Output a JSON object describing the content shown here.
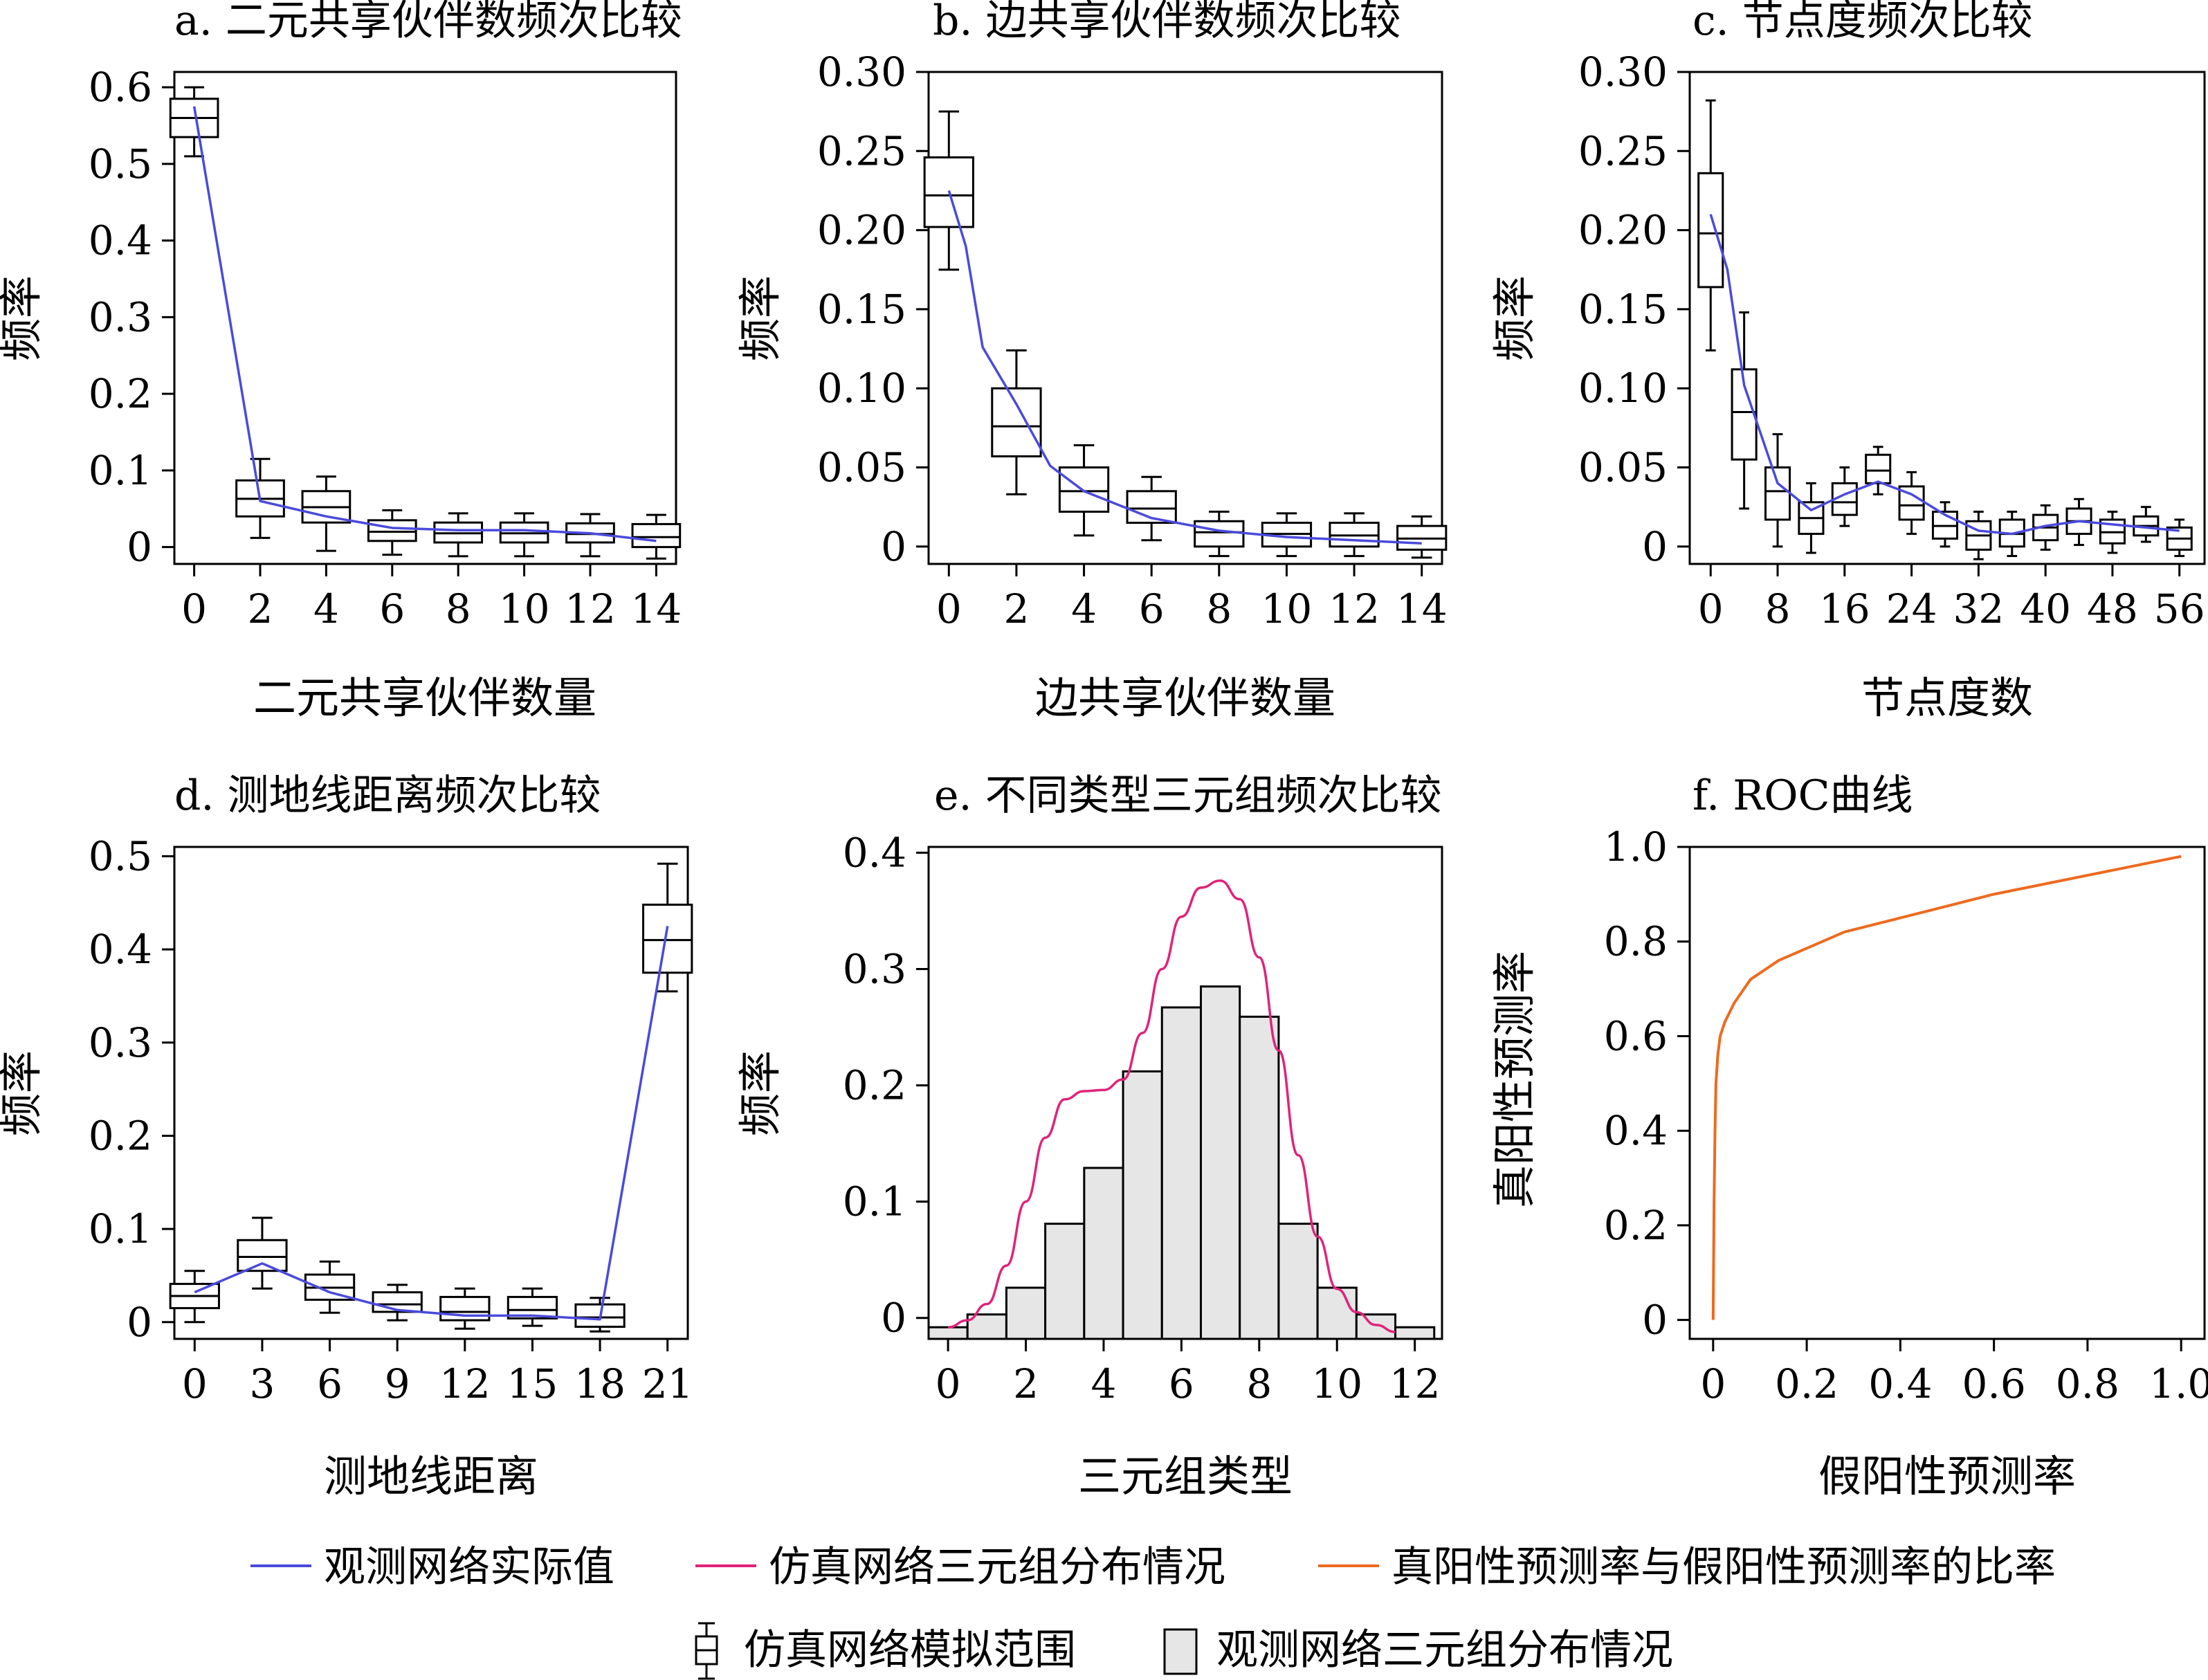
{
  "colors": {
    "observed_line": "#4a4adc",
    "sim_triad_curve": "#e0237a",
    "roc_line": "#ee6a1e",
    "hist_fill": "#e6e6e6",
    "box_stroke": "#000000"
  },
  "chart_data": [
    {
      "id": "a",
      "type": "box",
      "title": "a. 二元共享伙伴数频次比较",
      "xlabel": "二元共享伙伴数量",
      "ylabel": "频率",
      "xlim": [
        -0.6,
        14.6
      ],
      "ylim": [
        -0.022,
        0.62
      ],
      "xticks": [
        0,
        2,
        4,
        6,
        8,
        10,
        12,
        14
      ],
      "xtick_labels": [
        "0",
        "2",
        "4",
        "6",
        "8",
        "10",
        "12",
        "14"
      ],
      "yticks": [
        0,
        0.1,
        0.2,
        0.3,
        0.4,
        0.5,
        0.6
      ],
      "ytick_labels": [
        "0",
        "0.1",
        "0.2",
        "0.3",
        "0.4",
        "0.5",
        "0.6"
      ],
      "boxes": [
        {
          "x": 0,
          "wlo": 0.51,
          "q1": 0.535,
          "med": 0.56,
          "q3": 0.585,
          "whi": 0.6
        },
        {
          "x": 2,
          "wlo": 0.012,
          "q1": 0.04,
          "med": 0.063,
          "q3": 0.087,
          "whi": 0.115
        },
        {
          "x": 4,
          "wlo": -0.005,
          "q1": 0.032,
          "med": 0.052,
          "q3": 0.073,
          "whi": 0.092
        },
        {
          "x": 6,
          "wlo": -0.01,
          "q1": 0.008,
          "med": 0.02,
          "q3": 0.035,
          "whi": 0.048
        },
        {
          "x": 8,
          "wlo": -0.012,
          "q1": 0.006,
          "med": 0.018,
          "q3": 0.032,
          "whi": 0.044
        },
        {
          "x": 10,
          "wlo": -0.012,
          "q1": 0.006,
          "med": 0.018,
          "q3": 0.032,
          "whi": 0.044
        },
        {
          "x": 12,
          "wlo": -0.012,
          "q1": 0.006,
          "med": 0.017,
          "q3": 0.031,
          "whi": 0.043
        },
        {
          "x": 14,
          "wlo": -0.015,
          "q1": 0.0,
          "med": 0.013,
          "q3": 0.03,
          "whi": 0.042
        }
      ],
      "observed": {
        "x": [
          0,
          2,
          4,
          6,
          8,
          10,
          12,
          14
        ],
        "y": [
          0.575,
          0.06,
          0.04,
          0.025,
          0.022,
          0.022,
          0.018,
          0.008
        ]
      }
    },
    {
      "id": "b",
      "type": "box",
      "title": "b. 边共享伙伴数频次比较",
      "xlabel": "边共享伙伴数量",
      "ylabel": "频率",
      "xlim": [
        -0.6,
        14.6
      ],
      "ylim": [
        -0.011,
        0.3
      ],
      "xticks": [
        0,
        2,
        4,
        6,
        8,
        10,
        12,
        14
      ],
      "xtick_labels": [
        "0",
        "2",
        "4",
        "6",
        "8",
        "10",
        "12",
        "14"
      ],
      "yticks": [
        0,
        0.05,
        0.1,
        0.15,
        0.2,
        0.25,
        0.3
      ],
      "ytick_labels": [
        "0",
        "0.05",
        "0.10",
        "0.15",
        "0.20",
        "0.25",
        "0.30"
      ],
      "boxes": [
        {
          "x": 0,
          "wlo": 0.175,
          "q1": 0.202,
          "med": 0.222,
          "q3": 0.246,
          "whi": 0.275
        },
        {
          "x": 2,
          "wlo": 0.033,
          "q1": 0.057,
          "med": 0.076,
          "q3": 0.1,
          "whi": 0.124
        },
        {
          "x": 4,
          "wlo": 0.007,
          "q1": 0.022,
          "med": 0.035,
          "q3": 0.05,
          "whi": 0.064
        },
        {
          "x": 6,
          "wlo": 0.004,
          "q1": 0.015,
          "med": 0.024,
          "q3": 0.035,
          "whi": 0.044
        },
        {
          "x": 8,
          "wlo": -0.006,
          "q1": 0.0,
          "med": 0.009,
          "q3": 0.016,
          "whi": 0.022
        },
        {
          "x": 10,
          "wlo": -0.006,
          "q1": 0.0,
          "med": 0.008,
          "q3": 0.015,
          "whi": 0.021
        },
        {
          "x": 12,
          "wlo": -0.006,
          "q1": 0.0,
          "med": 0.007,
          "q3": 0.015,
          "whi": 0.021
        },
        {
          "x": 14,
          "wlo": -0.007,
          "q1": -0.002,
          "med": 0.005,
          "q3": 0.013,
          "whi": 0.019
        }
      ],
      "observed": {
        "x": [
          0,
          0.5,
          1,
          2,
          3,
          4,
          6,
          8,
          10,
          12,
          14
        ],
        "y": [
          0.225,
          0.19,
          0.126,
          0.09,
          0.051,
          0.035,
          0.018,
          0.01,
          0.006,
          0.004,
          0.002
        ]
      }
    },
    {
      "id": "c",
      "type": "box",
      "title": "c. 节点度频次比较",
      "xlabel": "节点度数",
      "ylabel": "频率",
      "xlim": [
        -2.5,
        59.0
      ],
      "ylim": [
        -0.011,
        0.3
      ],
      "xticks": [
        0,
        8,
        16,
        24,
        32,
        40,
        48,
        56
      ],
      "xtick_labels": [
        "0",
        "8",
        "16",
        "24",
        "32",
        "40",
        "48",
        "56"
      ],
      "yticks": [
        0,
        0.05,
        0.1,
        0.15,
        0.2,
        0.25,
        0.3
      ],
      "ytick_labels": [
        "0",
        "0.05",
        "0.10",
        "0.15",
        "0.20",
        "0.25",
        "0.30"
      ],
      "boxes": [
        {
          "x": 0,
          "wlo": 0.124,
          "q1": 0.164,
          "med": 0.198,
          "q3": 0.236,
          "whi": 0.282
        },
        {
          "x": 4,
          "wlo": 0.024,
          "q1": 0.055,
          "med": 0.085,
          "q3": 0.112,
          "whi": 0.148
        },
        {
          "x": 8,
          "wlo": 0.0,
          "q1": 0.017,
          "med": 0.035,
          "q3": 0.05,
          "whi": 0.071
        },
        {
          "x": 12,
          "wlo": -0.004,
          "q1": 0.008,
          "med": 0.018,
          "q3": 0.028,
          "whi": 0.04
        },
        {
          "x": 16,
          "wlo": 0.013,
          "q1": 0.02,
          "med": 0.028,
          "q3": 0.04,
          "whi": 0.05
        },
        {
          "x": 20,
          "wlo": 0.033,
          "q1": 0.04,
          "med": 0.048,
          "q3": 0.058,
          "whi": 0.063
        },
        {
          "x": 24,
          "wlo": 0.008,
          "q1": 0.017,
          "med": 0.026,
          "q3": 0.038,
          "whi": 0.047
        },
        {
          "x": 28,
          "wlo": 0.0,
          "q1": 0.005,
          "med": 0.013,
          "q3": 0.022,
          "whi": 0.028
        },
        {
          "x": 32,
          "wlo": -0.008,
          "q1": -0.002,
          "med": 0.007,
          "q3": 0.016,
          "whi": 0.022
        },
        {
          "x": 36,
          "wlo": -0.006,
          "q1": 0.0,
          "med": 0.008,
          "q3": 0.017,
          "whi": 0.022
        },
        {
          "x": 40,
          "wlo": -0.002,
          "q1": 0.004,
          "med": 0.012,
          "q3": 0.02,
          "whi": 0.026
        },
        {
          "x": 44,
          "wlo": 0.001,
          "q1": 0.008,
          "med": 0.016,
          "q3": 0.024,
          "whi": 0.03
        },
        {
          "x": 48,
          "wlo": -0.004,
          "q1": 0.002,
          "med": 0.009,
          "q3": 0.017,
          "whi": 0.022
        },
        {
          "x": 52,
          "wlo": 0.003,
          "q1": 0.007,
          "med": 0.013,
          "q3": 0.019,
          "whi": 0.025
        },
        {
          "x": 56,
          "wlo": -0.006,
          "q1": -0.002,
          "med": 0.005,
          "q3": 0.012,
          "whi": 0.017
        }
      ],
      "observed": {
        "x": [
          0,
          2,
          4,
          8,
          12,
          16,
          20,
          24,
          28,
          32,
          36,
          40,
          44,
          48,
          52,
          56
        ],
        "y": [
          0.21,
          0.175,
          0.102,
          0.04,
          0.023,
          0.033,
          0.041,
          0.033,
          0.02,
          0.01,
          0.008,
          0.013,
          0.016,
          0.014,
          0.012,
          0.01
        ]
      }
    },
    {
      "id": "d",
      "type": "box",
      "title": "d. 测地线距离频次比较",
      "xlabel": "测地线距离",
      "ylabel": "频率",
      "xlim": [
        -0.9,
        21.9
      ],
      "ylim": [
        -0.018,
        0.51
      ],
      "xticks": [
        0,
        3,
        6,
        9,
        12,
        15,
        18,
        21
      ],
      "xtick_labels": [
        "0",
        "3",
        "6",
        "9",
        "12",
        "15",
        "18",
        "21"
      ],
      "yticks": [
        0,
        0.1,
        0.2,
        0.3,
        0.4,
        0.5
      ],
      "ytick_labels": [
        "0",
        "0.1",
        "0.2",
        "0.3",
        "0.4",
        "0.5"
      ],
      "boxes": [
        {
          "x": 0,
          "wlo": 0.0,
          "q1": 0.015,
          "med": 0.028,
          "q3": 0.041,
          "whi": 0.055
        },
        {
          "x": 3,
          "wlo": 0.036,
          "q1": 0.055,
          "med": 0.07,
          "q3": 0.088,
          "whi": 0.112
        },
        {
          "x": 6,
          "wlo": 0.01,
          "q1": 0.024,
          "med": 0.037,
          "q3": 0.051,
          "whi": 0.065
        },
        {
          "x": 9,
          "wlo": 0.002,
          "q1": 0.011,
          "med": 0.019,
          "q3": 0.032,
          "whi": 0.04
        },
        {
          "x": 12,
          "wlo": -0.007,
          "q1": 0.002,
          "med": 0.011,
          "q3": 0.027,
          "whi": 0.036
        },
        {
          "x": 15,
          "wlo": -0.004,
          "q1": 0.004,
          "med": 0.013,
          "q3": 0.027,
          "whi": 0.036
        },
        {
          "x": 18,
          "wlo": -0.01,
          "q1": -0.005,
          "med": 0.005,
          "q3": 0.019,
          "whi": 0.026
        },
        {
          "x": 21,
          "wlo": 0.355,
          "q1": 0.375,
          "med": 0.41,
          "q3": 0.448,
          "whi": 0.492
        }
      ],
      "observed": {
        "x": [
          0,
          3,
          6,
          9,
          12,
          15,
          18,
          21
        ],
        "y": [
          0.032,
          0.063,
          0.032,
          0.013,
          0.007,
          0.007,
          0.003,
          0.425
        ]
      }
    },
    {
      "id": "e",
      "type": "bar",
      "title": "e. 不同类型三元组频次比较",
      "xlabel": "三元组类型",
      "ylabel": "频率",
      "xlim": [
        -0.5,
        12.7
      ],
      "ylim": [
        -0.018,
        0.405
      ],
      "xticks": [
        0,
        2,
        4,
        6,
        8,
        10,
        12
      ],
      "xtick_labels": [
        "0",
        "2",
        "4",
        "6",
        "8",
        "10",
        "12"
      ],
      "yticks": [
        0,
        0.1,
        0.2,
        0.3,
        0.4
      ],
      "ytick_labels": [
        "0",
        "0.1",
        "0.2",
        "0.3",
        "0.4"
      ],
      "bar_width": 1,
      "bars": [
        {
          "x": 0,
          "value": -0.008
        },
        {
          "x": 1,
          "value": 0.003
        },
        {
          "x": 2,
          "value": 0.026
        },
        {
          "x": 3,
          "value": 0.081
        },
        {
          "x": 4,
          "value": 0.129
        },
        {
          "x": 5,
          "value": 0.212
        },
        {
          "x": 6,
          "value": 0.267
        },
        {
          "x": 7,
          "value": 0.285
        },
        {
          "x": 8,
          "value": 0.259
        },
        {
          "x": 9,
          "value": 0.081
        },
        {
          "x": 10,
          "value": 0.026
        },
        {
          "x": 11,
          "value": 0.003
        },
        {
          "x": 12,
          "value": -0.008
        }
      ],
      "simulated_curve": {
        "x": [
          0,
          0.5,
          1,
          1.5,
          2,
          2.5,
          3,
          3.5,
          4,
          4.5,
          5,
          5.5,
          6,
          6.5,
          7,
          7.5,
          8,
          8.5,
          9,
          9.5,
          10,
          10.5,
          11,
          11.5
        ],
        "y": [
          -0.008,
          -0.002,
          0.012,
          0.045,
          0.1,
          0.155,
          0.188,
          0.195,
          0.196,
          0.205,
          0.245,
          0.3,
          0.345,
          0.37,
          0.376,
          0.36,
          0.31,
          0.23,
          0.14,
          0.07,
          0.025,
          0.005,
          -0.006,
          -0.012
        ]
      }
    },
    {
      "id": "f",
      "type": "line",
      "title": "f. ROC曲线",
      "xlabel": "假阳性预测率",
      "ylabel": "真阳性预测率",
      "xlim": [
        -0.05,
        1.05
      ],
      "ylim": [
        -0.04,
        1.0
      ],
      "xticks": [
        0,
        0.2,
        0.4,
        0.6,
        0.8,
        1.0
      ],
      "xtick_labels": [
        "0",
        "0.2",
        "0.4",
        "0.6",
        "0.8",
        "1.0"
      ],
      "yticks": [
        0,
        0.2,
        0.4,
        0.6,
        0.8,
        1.0
      ],
      "ytick_labels": [
        "0",
        "0.2",
        "0.4",
        "0.6",
        "0.8",
        "1.0"
      ],
      "roc": {
        "x": [
          0.0,
          0.002,
          0.004,
          0.006,
          0.01,
          0.015,
          0.025,
          0.045,
          0.08,
          0.14,
          0.28,
          0.6,
          1.0
        ],
        "y": [
          0.0,
          0.25,
          0.4,
          0.5,
          0.56,
          0.6,
          0.63,
          0.67,
          0.72,
          0.76,
          0.82,
          0.9,
          0.98
        ]
      }
    }
  ],
  "legend": {
    "observed_line": "观测网络实际值",
    "sim_triad_curve": "仿真网络三元组分布情况",
    "roc_line": "真阳性预测率与假阳性预测率的比率",
    "box_range": "仿真网络模拟范围",
    "observed_hist": "观测网络三元组分布情况"
  }
}
